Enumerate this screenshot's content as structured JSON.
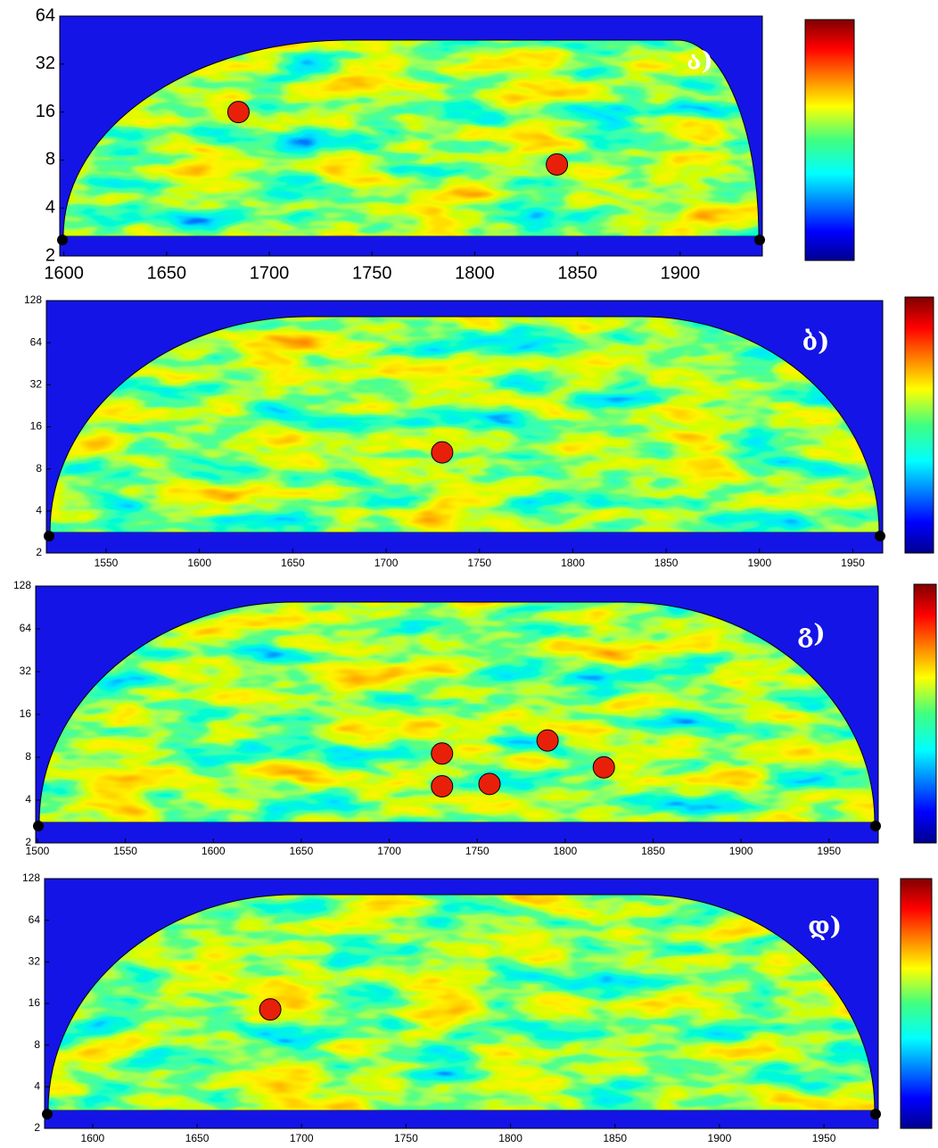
{
  "chart_data": [
    {
      "type": "wavelet",
      "label": "ა)",
      "ylog": true,
      "xlim": [
        1598,
        1940
      ],
      "xticks": [
        1600,
        1650,
        1700,
        1750,
        1800,
        1850,
        1900
      ],
      "ylim": [
        2,
        64
      ],
      "yticks": [
        2,
        4,
        8,
        16,
        32,
        64
      ],
      "significant_x": [
        1685,
        1840
      ],
      "significant_period": [
        16,
        7.5
      ]
    },
    {
      "type": "wavelet",
      "label": "ბ)",
      "ylog": true,
      "xlim": [
        1518,
        1966
      ],
      "xticks": [
        1550,
        1600,
        1650,
        1700,
        1750,
        1800,
        1850,
        1900,
        1950
      ],
      "ylim": [
        2,
        128
      ],
      "yticks": [
        2,
        4,
        8,
        16,
        32,
        64,
        128
      ],
      "significant_x": [
        1730
      ],
      "significant_period": [
        10.5
      ]
    },
    {
      "type": "wavelet",
      "label": "გ)",
      "ylog": true,
      "xlim": [
        1499,
        1978
      ],
      "xticks": [
        1500,
        1550,
        1600,
        1650,
        1700,
        1750,
        1800,
        1850,
        1900,
        1950
      ],
      "ylim": [
        2,
        128
      ],
      "yticks": [
        2,
        4,
        8,
        16,
        32,
        64,
        128
      ],
      "significant_x": [
        1730,
        1730,
        1757,
        1790,
        1822
      ],
      "significant_period": [
        8.5,
        5,
        5.2,
        10.5,
        6.8
      ]
    },
    {
      "type": "wavelet",
      "label": "დ)",
      "ylog": true,
      "xlim": [
        1577,
        1976
      ],
      "xticks": [
        1600,
        1650,
        1700,
        1750,
        1800,
        1850,
        1900,
        1950
      ],
      "ylim": [
        2,
        128
      ],
      "yticks": [
        2,
        4,
        8,
        16,
        32,
        64,
        128
      ],
      "significant_x": [
        1685
      ],
      "significant_period": [
        14.5
      ]
    }
  ]
}
